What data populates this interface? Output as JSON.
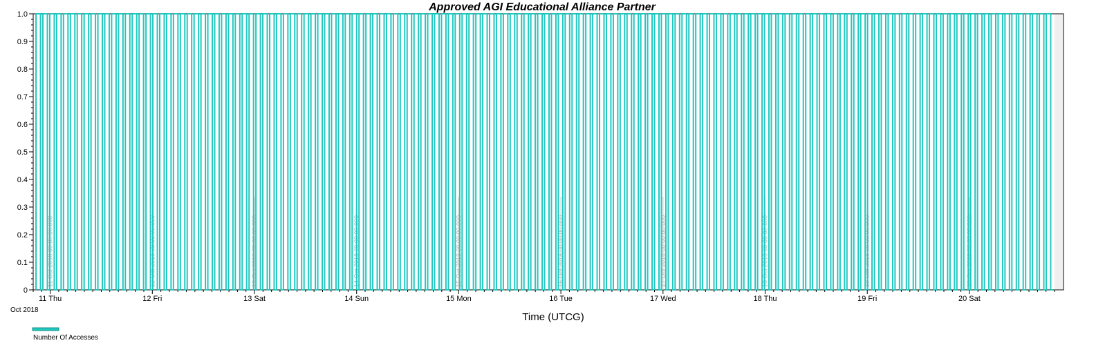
{
  "chart_data": {
    "type": "line",
    "title": "Approved AGI Educational Alliance Partner",
    "xlabel": "Time (UTCG)",
    "ylabel": "",
    "ylim": [
      0,
      1
    ],
    "yticks": [
      "0",
      "0.1",
      "0.2",
      "0.3",
      "0.4",
      "0.5",
      "0.6",
      "0.7",
      "0.8",
      "0.9",
      "1.0"
    ],
    "xlim": [
      "2018-10-10T20:00",
      "2018-10-20T20:00"
    ],
    "month_label": "Oct 2018",
    "xticks": [
      "11 Thu",
      "12 Fri",
      "13 Sat",
      "14 Sun",
      "15 Mon",
      "16 Tue",
      "17 Wed",
      "18 Thu",
      "19 Fri",
      "20 Sat"
    ],
    "day_markers": [
      "11 Oct 2018 00:00:00.000",
      "12 Oct 2018 00:00:00.000",
      "13 Oct 2018 00:00:00.000",
      "14 Oct 2018 00:00:00.000",
      "15 Oct 2018 00:00:00.000",
      "16 Oct 2018 00:00:00.000",
      "17 Oct 2018 00:00:00.000",
      "18 Oct 2018 00:00:00.000",
      "19 Oct 2018 00:00:00.000",
      "20 Oct 2018 00:00:00.000"
    ],
    "grid": false,
    "legend_position": "bottom-left",
    "series": [
      {
        "name": "Number Of Accesses",
        "color": "#20c8c0",
        "start": "2018-10-10T20:40",
        "end": "2018-10-20T19:40",
        "pulse_count": 148,
        "on_fraction": 0.65,
        "values_low_high": [
          0,
          1
        ]
      }
    ]
  }
}
